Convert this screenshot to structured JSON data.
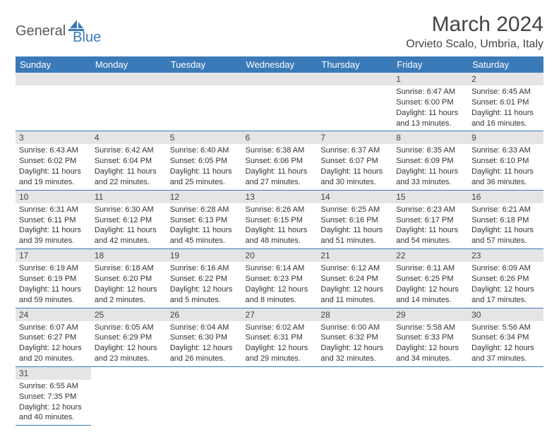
{
  "logo": {
    "text1": "General",
    "text2": "Blue",
    "shape_color": "#3b7ab8"
  },
  "title": "March 2024",
  "location": "Orvieto Scalo, Umbria, Italy",
  "colors": {
    "header_bg": "#3b7ab8",
    "header_fg": "#ffffff",
    "daynum_bg": "#e5e5e5",
    "row_border": "#3b7ab8"
  },
  "weekdays": [
    "Sunday",
    "Monday",
    "Tuesday",
    "Wednesday",
    "Thursday",
    "Friday",
    "Saturday"
  ],
  "weeks": [
    [
      null,
      null,
      null,
      null,
      null,
      {
        "n": "1",
        "sr": "Sunrise: 6:47 AM",
        "ss": "Sunset: 6:00 PM",
        "d1": "Daylight: 11 hours",
        "d2": "and 13 minutes."
      },
      {
        "n": "2",
        "sr": "Sunrise: 6:45 AM",
        "ss": "Sunset: 6:01 PM",
        "d1": "Daylight: 11 hours",
        "d2": "and 16 minutes."
      }
    ],
    [
      {
        "n": "3",
        "sr": "Sunrise: 6:43 AM",
        "ss": "Sunset: 6:02 PM",
        "d1": "Daylight: 11 hours",
        "d2": "and 19 minutes."
      },
      {
        "n": "4",
        "sr": "Sunrise: 6:42 AM",
        "ss": "Sunset: 6:04 PM",
        "d1": "Daylight: 11 hours",
        "d2": "and 22 minutes."
      },
      {
        "n": "5",
        "sr": "Sunrise: 6:40 AM",
        "ss": "Sunset: 6:05 PM",
        "d1": "Daylight: 11 hours",
        "d2": "and 25 minutes."
      },
      {
        "n": "6",
        "sr": "Sunrise: 6:38 AM",
        "ss": "Sunset: 6:06 PM",
        "d1": "Daylight: 11 hours",
        "d2": "and 27 minutes."
      },
      {
        "n": "7",
        "sr": "Sunrise: 6:37 AM",
        "ss": "Sunset: 6:07 PM",
        "d1": "Daylight: 11 hours",
        "d2": "and 30 minutes."
      },
      {
        "n": "8",
        "sr": "Sunrise: 6:35 AM",
        "ss": "Sunset: 6:09 PM",
        "d1": "Daylight: 11 hours",
        "d2": "and 33 minutes."
      },
      {
        "n": "9",
        "sr": "Sunrise: 6:33 AM",
        "ss": "Sunset: 6:10 PM",
        "d1": "Daylight: 11 hours",
        "d2": "and 36 minutes."
      }
    ],
    [
      {
        "n": "10",
        "sr": "Sunrise: 6:31 AM",
        "ss": "Sunset: 6:11 PM",
        "d1": "Daylight: 11 hours",
        "d2": "and 39 minutes."
      },
      {
        "n": "11",
        "sr": "Sunrise: 6:30 AM",
        "ss": "Sunset: 6:12 PM",
        "d1": "Daylight: 11 hours",
        "d2": "and 42 minutes."
      },
      {
        "n": "12",
        "sr": "Sunrise: 6:28 AM",
        "ss": "Sunset: 6:13 PM",
        "d1": "Daylight: 11 hours",
        "d2": "and 45 minutes."
      },
      {
        "n": "13",
        "sr": "Sunrise: 6:26 AM",
        "ss": "Sunset: 6:15 PM",
        "d1": "Daylight: 11 hours",
        "d2": "and 48 minutes."
      },
      {
        "n": "14",
        "sr": "Sunrise: 6:25 AM",
        "ss": "Sunset: 6:16 PM",
        "d1": "Daylight: 11 hours",
        "d2": "and 51 minutes."
      },
      {
        "n": "15",
        "sr": "Sunrise: 6:23 AM",
        "ss": "Sunset: 6:17 PM",
        "d1": "Daylight: 11 hours",
        "d2": "and 54 minutes."
      },
      {
        "n": "16",
        "sr": "Sunrise: 6:21 AM",
        "ss": "Sunset: 6:18 PM",
        "d1": "Daylight: 11 hours",
        "d2": "and 57 minutes."
      }
    ],
    [
      {
        "n": "17",
        "sr": "Sunrise: 6:19 AM",
        "ss": "Sunset: 6:19 PM",
        "d1": "Daylight: 11 hours",
        "d2": "and 59 minutes."
      },
      {
        "n": "18",
        "sr": "Sunrise: 6:18 AM",
        "ss": "Sunset: 6:20 PM",
        "d1": "Daylight: 12 hours",
        "d2": "and 2 minutes."
      },
      {
        "n": "19",
        "sr": "Sunrise: 6:16 AM",
        "ss": "Sunset: 6:22 PM",
        "d1": "Daylight: 12 hours",
        "d2": "and 5 minutes."
      },
      {
        "n": "20",
        "sr": "Sunrise: 6:14 AM",
        "ss": "Sunset: 6:23 PM",
        "d1": "Daylight: 12 hours",
        "d2": "and 8 minutes."
      },
      {
        "n": "21",
        "sr": "Sunrise: 6:12 AM",
        "ss": "Sunset: 6:24 PM",
        "d1": "Daylight: 12 hours",
        "d2": "and 11 minutes."
      },
      {
        "n": "22",
        "sr": "Sunrise: 6:11 AM",
        "ss": "Sunset: 6:25 PM",
        "d1": "Daylight: 12 hours",
        "d2": "and 14 minutes."
      },
      {
        "n": "23",
        "sr": "Sunrise: 6:09 AM",
        "ss": "Sunset: 6:26 PM",
        "d1": "Daylight: 12 hours",
        "d2": "and 17 minutes."
      }
    ],
    [
      {
        "n": "24",
        "sr": "Sunrise: 6:07 AM",
        "ss": "Sunset: 6:27 PM",
        "d1": "Daylight: 12 hours",
        "d2": "and 20 minutes."
      },
      {
        "n": "25",
        "sr": "Sunrise: 6:05 AM",
        "ss": "Sunset: 6:29 PM",
        "d1": "Daylight: 12 hours",
        "d2": "and 23 minutes."
      },
      {
        "n": "26",
        "sr": "Sunrise: 6:04 AM",
        "ss": "Sunset: 6:30 PM",
        "d1": "Daylight: 12 hours",
        "d2": "and 26 minutes."
      },
      {
        "n": "27",
        "sr": "Sunrise: 6:02 AM",
        "ss": "Sunset: 6:31 PM",
        "d1": "Daylight: 12 hours",
        "d2": "and 29 minutes."
      },
      {
        "n": "28",
        "sr": "Sunrise: 6:00 AM",
        "ss": "Sunset: 6:32 PM",
        "d1": "Daylight: 12 hours",
        "d2": "and 32 minutes."
      },
      {
        "n": "29",
        "sr": "Sunrise: 5:58 AM",
        "ss": "Sunset: 6:33 PM",
        "d1": "Daylight: 12 hours",
        "d2": "and 34 minutes."
      },
      {
        "n": "30",
        "sr": "Sunrise: 5:56 AM",
        "ss": "Sunset: 6:34 PM",
        "d1": "Daylight: 12 hours",
        "d2": "and 37 minutes."
      }
    ],
    [
      {
        "n": "31",
        "sr": "Sunrise: 6:55 AM",
        "ss": "Sunset: 7:35 PM",
        "d1": "Daylight: 12 hours",
        "d2": "and 40 minutes."
      },
      null,
      null,
      null,
      null,
      null,
      null
    ]
  ]
}
